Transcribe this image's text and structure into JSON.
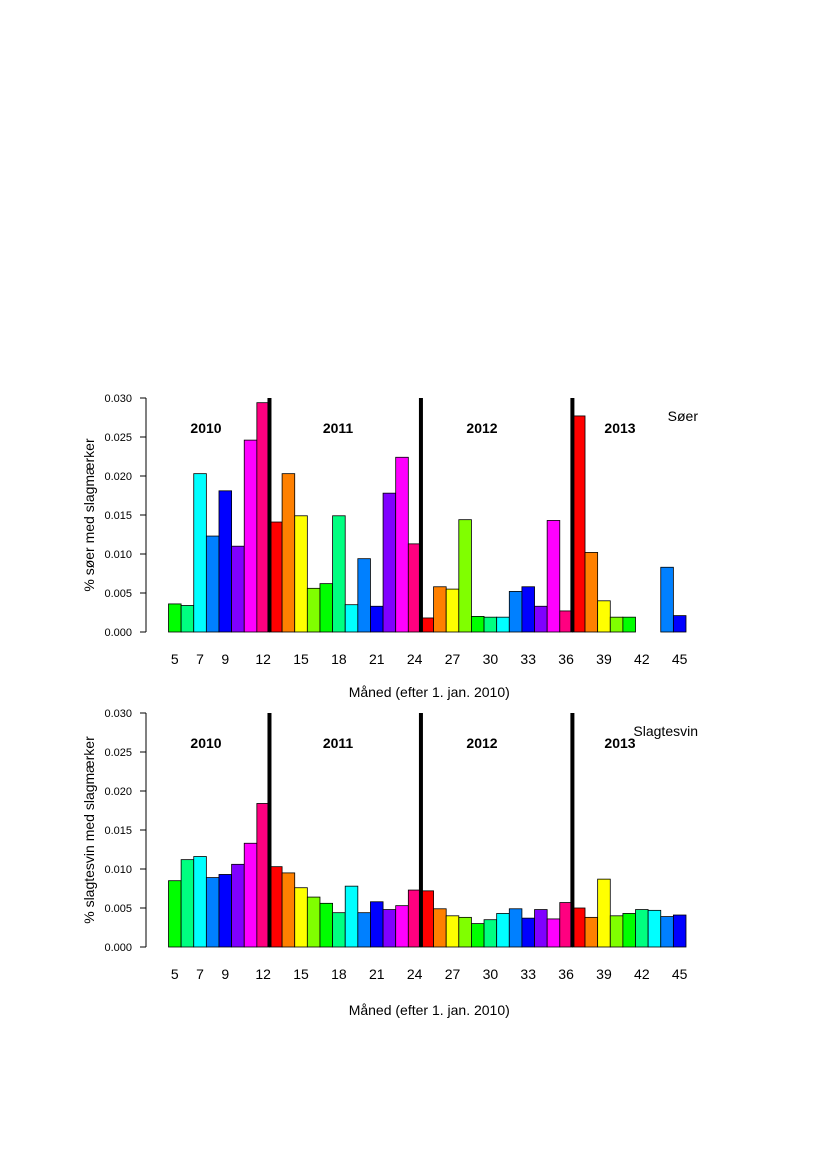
{
  "chart_data": [
    {
      "type": "bar",
      "title": "Søer",
      "xlabel": "Måned (efter 1. jan. 2010)",
      "ylabel": "% søer med slagmærker",
      "ylim": [
        0,
        0.03
      ],
      "yticks": [
        "0.000",
        "0.005",
        "0.010",
        "0.015",
        "0.020",
        "0.025",
        "0.030"
      ],
      "x": [
        5,
        6,
        7,
        8,
        9,
        10,
        11,
        12,
        13,
        14,
        15,
        16,
        17,
        18,
        19,
        20,
        21,
        22,
        23,
        24,
        25,
        26,
        27,
        28,
        29,
        30,
        31,
        32,
        33,
        34,
        35,
        36,
        37,
        38,
        39,
        40,
        41,
        42,
        43,
        44,
        45
      ],
      "xtick_labels": [
        "5",
        "7",
        "9",
        "12",
        "15",
        "18",
        "21",
        "24",
        "27",
        "30",
        "33",
        "36",
        "39",
        "42",
        "45"
      ],
      "values": [
        0.0036,
        0.0034,
        0.0203,
        0.0123,
        0.0181,
        0.011,
        0.0246,
        0.0294,
        0.0141,
        0.0203,
        0.0149,
        0.0056,
        0.0062,
        0.0149,
        0.0035,
        0.0094,
        0.0033,
        0.0178,
        0.0224,
        0.0113,
        0.0018,
        0.0058,
        0.0055,
        0.0144,
        0.002,
        0.0019,
        0.0019,
        0.0052,
        0.0058,
        0.0033,
        0.0143,
        0.0027,
        0.0277,
        0.0102,
        0.004,
        0.0019,
        0.0019,
        0,
        0,
        0.0083,
        0.0021
      ],
      "year_breaks": [
        12.5,
        24.5,
        36.5
      ],
      "years": [
        "2010",
        "2011",
        "2012",
        "2013"
      ]
    },
    {
      "type": "bar",
      "title": "Slagtesvin",
      "xlabel": "Måned (efter 1. jan. 2010)",
      "ylabel": "% slagtesvin med slagmærker",
      "ylim": [
        0,
        0.03
      ],
      "yticks": [
        "0.000",
        "0.005",
        "0.010",
        "0.015",
        "0.020",
        "0.025",
        "0.030"
      ],
      "x": [
        5,
        6,
        7,
        8,
        9,
        10,
        11,
        12,
        13,
        14,
        15,
        16,
        17,
        18,
        19,
        20,
        21,
        22,
        23,
        24,
        25,
        26,
        27,
        28,
        29,
        30,
        31,
        32,
        33,
        34,
        35,
        36,
        37,
        38,
        39,
        40,
        41,
        42,
        43,
        44,
        45
      ],
      "xtick_labels": [
        "5",
        "7",
        "9",
        "12",
        "15",
        "18",
        "21",
        "24",
        "27",
        "30",
        "33",
        "36",
        "39",
        "42",
        "45"
      ],
      "values": [
        0.0085,
        0.0112,
        0.0116,
        0.0089,
        0.0093,
        0.0106,
        0.0133,
        0.0184,
        0.0103,
        0.0095,
        0.0076,
        0.0064,
        0.0056,
        0.0044,
        0.0078,
        0.0044,
        0.0058,
        0.0048,
        0.0053,
        0.0073,
        0.0072,
        0.0049,
        0.004,
        0.0038,
        0.003,
        0.0035,
        0.0043,
        0.0049,
        0.0037,
        0.0048,
        0.0036,
        0.0057,
        0.005,
        0.0038,
        0.0087,
        0.004,
        0.0043,
        0.0048,
        0.0047,
        0.0039,
        0.0041
      ],
      "year_breaks": [
        12.5,
        24.5,
        36.5
      ],
      "years": [
        "2010",
        "2011",
        "2012",
        "2013"
      ]
    }
  ],
  "palette": [
    "#FF0000",
    "#FF8000",
    "#FFFF00",
    "#80FF00",
    "#00FF00",
    "#00FF80",
    "#00FFFF",
    "#0080FF",
    "#0000FF",
    "#8000FF",
    "#FF00FF",
    "#FF0080"
  ]
}
